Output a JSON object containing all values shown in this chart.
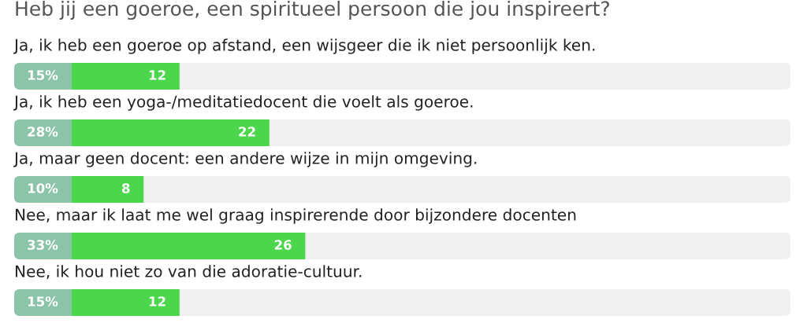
{
  "chart_data": {
    "type": "bar",
    "orientation": "horizontal",
    "title": "Heb jij een goeroe, een spiritueel persoon die jou inspireert?",
    "categories": [
      "Ja, ik heb een goeroe op afstand, een wijsgeer die ik niet persoonlijk ken.",
      "Ja, ik heb een yoga-/meditatiedocent die voelt als goeroe.",
      "Ja, maar geen docent: een andere wijze in mijn omgeving.",
      "Nee, maar ik laat me wel graag inspirerende door bijzondere docenten",
      "Nee, ik hou niet zo van die adoratie-cultuur."
    ],
    "values": [
      12,
      22,
      8,
      26,
      12
    ],
    "color": "#4cd64c",
    "data_labels": true,
    "annotations": [
      "15%",
      "28%",
      "10%",
      "33%",
      "15%"
    ],
    "tick_labels": "y"
  }
}
